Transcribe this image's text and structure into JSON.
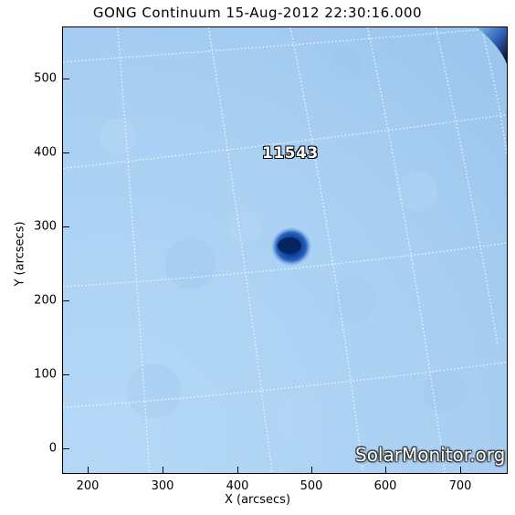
{
  "title": "GONG Continuum 15-Aug-2012 22:30:16.000",
  "axes": {
    "xlabel": "X (arcsecs)",
    "ylabel": "Y (arcsecs)",
    "xticks": [
      "200",
      "300",
      "400",
      "500",
      "600",
      "700"
    ],
    "yticks": [
      "0",
      "100",
      "200",
      "300",
      "400",
      "500"
    ]
  },
  "region": {
    "number": "11543"
  },
  "watermark": "SolarMonitor.org",
  "colors": {
    "disk": "#a9d0f2",
    "sunspot": "#0a3a8c",
    "grid": "#ffffff",
    "limb": "#001030"
  }
}
